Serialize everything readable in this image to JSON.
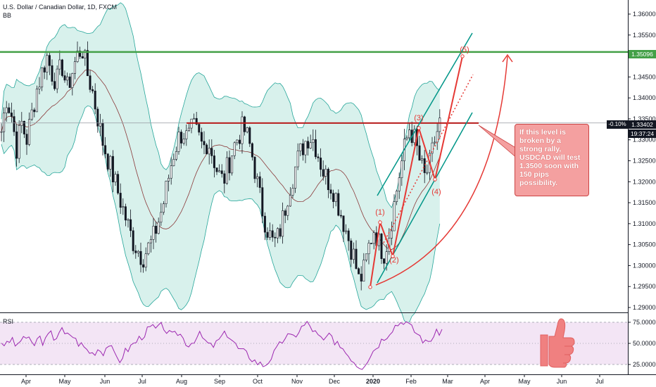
{
  "header": {
    "symbol": "U.S. Dollar / Canadian Dollar, 1D, FXCM",
    "indicator": "BB"
  },
  "rsi_label": "RSI",
  "callout_text": "If this level is broken by a strong rally, USDCAD will test 1.3500 soon with 150 pips possibility.",
  "tags": {
    "green_level": "1.35096",
    "current_price": "1.33402",
    "change_pct": "-0.10%",
    "timer": "19:37:24"
  },
  "colors": {
    "candle": "#131722",
    "bb_fill": "#c8ebe4",
    "bb_line": "#26a69a",
    "basis": "#8b3a3a",
    "resistance": "#b71c1c",
    "green_level": "#43a047",
    "annotation_red": "#e53935",
    "channel": "#009688",
    "rsi": "#9c27b0",
    "rsi_band": "#f3e5f5",
    "callout": "#f4a0a0",
    "thumb": "#f08080"
  },
  "wave_labels": [
    "(1)",
    "(2)",
    "(3)",
    "(4)",
    "(5)"
  ],
  "chart_data": [
    {
      "type": "candlestick",
      "title": "U.S. Dollar / Canadian Dollar, 1D, FXCM",
      "x_ticks": [
        "Apr",
        "May",
        "Jun",
        "Jul",
        "Aug",
        "Sep",
        "Oct",
        "Nov",
        "Dec",
        "2020",
        "Feb",
        "Mar",
        "Apr",
        "May",
        "Jun",
        "Jul"
      ],
      "y_ticks": [
        "1.36000",
        "1.35500",
        "1.35000",
        "1.34500",
        "1.34000",
        "1.33500",
        "1.33000",
        "1.32500",
        "1.32000",
        "1.31500",
        "1.31000",
        "1.30500",
        "1.30000",
        "1.29500",
        "1.29000"
      ],
      "ylim": [
        1.289,
        1.364
      ],
      "horizontal_levels": [
        {
          "name": "green",
          "value": 1.35096
        },
        {
          "name": "resistance",
          "value": 1.334
        },
        {
          "name": "current",
          "value": 1.33402
        }
      ],
      "series_path": [
        1.332,
        1.34,
        1.336,
        1.328,
        1.334,
        1.33,
        1.336,
        1.342,
        1.346,
        1.35,
        1.346,
        1.344,
        1.348,
        1.342,
        1.346,
        1.35,
        1.352,
        1.346,
        1.342,
        1.336,
        1.33,
        1.326,
        1.322,
        1.318,
        1.314,
        1.31,
        1.306,
        1.304,
        1.302,
        1.304,
        1.306,
        1.31,
        1.314,
        1.32,
        1.326,
        1.33,
        1.332,
        1.33,
        1.333,
        1.331,
        1.328,
        1.33,
        1.326,
        1.322,
        1.32,
        1.324,
        1.328,
        1.331,
        1.333,
        1.33,
        1.325,
        1.318,
        1.312,
        1.308,
        1.305,
        1.307,
        1.312,
        1.318,
        1.322,
        1.326,
        1.329,
        1.331,
        1.33,
        1.326,
        1.322,
        1.32,
        1.318,
        1.314,
        1.31,
        1.306,
        1.302,
        1.296,
        1.299,
        1.305,
        1.309,
        1.305,
        1.303,
        1.308,
        1.315,
        1.322,
        1.328,
        1.333,
        1.33,
        1.325,
        1.321,
        1.324,
        1.33,
        1.334
      ]
    },
    {
      "type": "line",
      "title": "RSI",
      "y_ticks": [
        "75.0000",
        "50.0000",
        "25.0000"
      ],
      "ylim": [
        15,
        85
      ],
      "values": [
        52,
        48,
        56,
        44,
        60,
        54,
        47,
        58,
        50,
        63,
        55,
        68,
        58,
        62,
        52,
        48,
        42,
        38,
        44,
        40,
        50,
        36,
        30,
        40,
        46,
        52,
        58,
        64,
        70,
        66,
        72,
        62,
        58,
        64,
        54,
        48,
        56,
        60,
        52,
        46,
        50,
        58,
        62,
        54,
        44,
        40,
        36,
        30,
        26,
        24,
        32,
        40,
        50,
        60,
        56,
        62,
        70,
        74,
        66,
        58,
        52,
        62,
        46,
        50,
        40,
        34,
        26,
        22,
        30,
        40,
        48,
        56,
        62,
        70,
        74,
        78,
        70,
        64,
        58,
        50,
        56,
        62,
        66
      ]
    }
  ]
}
